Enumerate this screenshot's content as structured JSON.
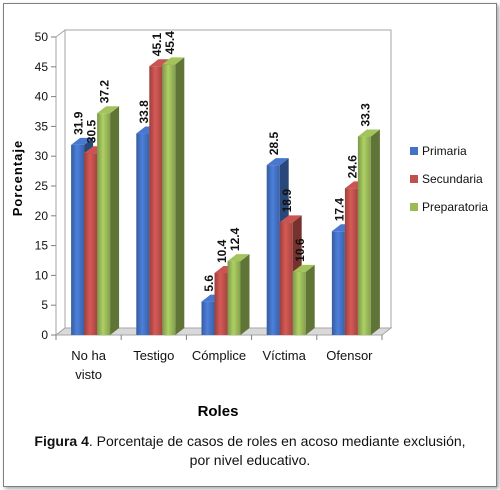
{
  "chart_data": {
    "type": "bar",
    "categories": [
      [
        "No ha",
        "visto"
      ],
      [
        "Testigo"
      ],
      [
        "Cómplice"
      ],
      [
        "Víctima"
      ],
      [
        "Ofensor"
      ]
    ],
    "series": [
      {
        "name": "Primaria",
        "values": [
          31.9,
          33.8,
          5.6,
          28.5,
          17.4
        ],
        "labels": [
          "31.9",
          "33.8",
          "5.6",
          "28.5",
          "17.4"
        ],
        "color": "#4472c4"
      },
      {
        "name": "Secundaria",
        "values": [
          30.5,
          45.1,
          10.4,
          18.9,
          24.6
        ],
        "labels": [
          "30.5",
          "45.1",
          "10.4",
          "18.9",
          "24.6"
        ],
        "color": "#c0504d"
      },
      {
        "name": "Preparatoria",
        "values": [
          37.2,
          45.4,
          12.4,
          10.6,
          33.3
        ],
        "labels": [
          "37.2",
          "45.4",
          "12.4",
          "10.6",
          "33.3"
        ],
        "color": "#9bbb59"
      }
    ],
    "xlabel": "Roles",
    "ylabel": "Porcentaje",
    "ylim": [
      0,
      50
    ],
    "yticks": [
      "0",
      "5",
      "10",
      "15",
      "20",
      "25",
      "30",
      "35",
      "40",
      "45",
      "50"
    ],
    "grid": false,
    "legend": "right",
    "style": "3d-clustered-column"
  },
  "caption": {
    "bold": "Figura 4",
    "text": ". Porcentaje de casos de roles en acoso mediante exclusión,",
    "line2": "por nivel educativo."
  }
}
